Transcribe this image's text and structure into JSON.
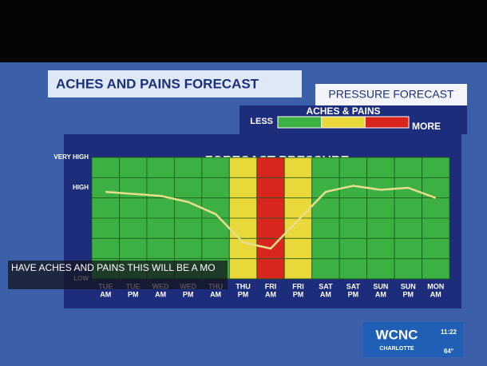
{
  "header": {
    "title": "ACHES AND PAINS FORECAST",
    "subtitle": "PRESSURE FORECAST"
  },
  "legend": {
    "title": "ACHES & PAINS",
    "low_label": "LESS",
    "high_label": "MORE",
    "colors": [
      "#3cb043",
      "#e8d83a",
      "#d8261f"
    ]
  },
  "chart_data": {
    "type": "line",
    "title": "FORECAST PRESSURE",
    "categories": [
      [
        "TUE",
        "AM"
      ],
      [
        "TUE",
        "PM"
      ],
      [
        "WED",
        "AM"
      ],
      [
        "WED",
        "PM"
      ],
      [
        "THU",
        "AM"
      ],
      [
        "THU",
        "PM"
      ],
      [
        "FRI",
        "AM"
      ],
      [
        "FRI",
        "PM"
      ],
      [
        "SAT",
        "AM"
      ],
      [
        "SAT",
        "PM"
      ],
      [
        "SUN",
        "AM"
      ],
      [
        "SUN",
        "PM"
      ],
      [
        "MON",
        "AM"
      ]
    ],
    "series": [
      {
        "name": "Pressure",
        "color": "#e8dd8a",
        "values": [
          4.3,
          4.2,
          4.1,
          3.8,
          3.2,
          1.8,
          1.5,
          2.9,
          4.3,
          4.6,
          4.4,
          4.5,
          4.0
        ]
      }
    ],
    "column_colors": [
      "#3cb043",
      "#3cb043",
      "#3cb043",
      "#3cb043",
      "#3cb043",
      "#e8d83a",
      "#d8261f",
      "#e8d83a",
      "#3cb043",
      "#3cb043",
      "#3cb043",
      "#3cb043",
      "#3cb043"
    ],
    "ylim": [
      0,
      6
    ],
    "yticks": [
      {
        "value": 6,
        "label": "VERY HIGH"
      },
      {
        "value": 4.5,
        "label": "HIGH"
      },
      {
        "value": 0,
        "label": "LOW"
      }
    ]
  },
  "caption": "HAVE ACHES AND PAINS THIS WILL BE A MO",
  "station": {
    "name": "WCNC",
    "city": "CHARLOTTE",
    "time": "11:22",
    "temperature": "64°"
  }
}
